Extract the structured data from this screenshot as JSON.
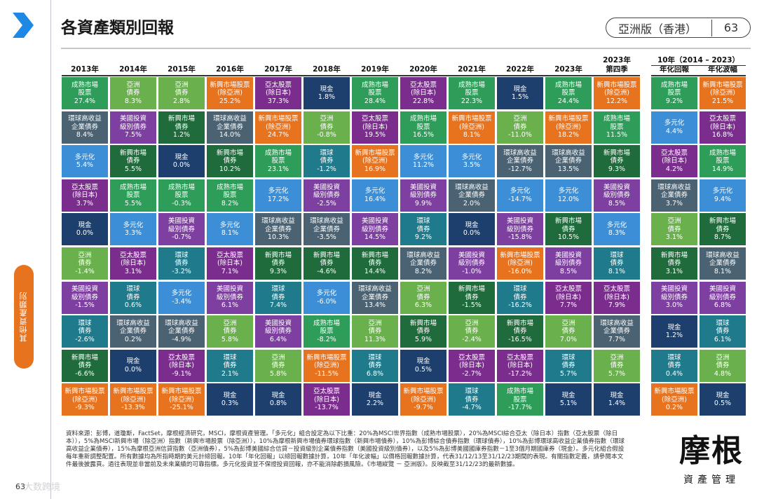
{
  "page": {
    "title": "各資產類別回報",
    "edition": "亞洲版（香港）",
    "page_number": "63",
    "side_tab": "其他資產類別",
    "footer_page_number": "63",
    "watermark": "大数跨境",
    "logo_main": "摩根",
    "logo_sub": "資產管理",
    "footnote": "資料來源：彭博，道瓊斯，FactSet，摩根經濟研究，MSCI，摩根資產管理。「多元化」組合設定為以下比重：20%為MSCI世界指數（成熟市場股票），20%為MSCI綜合亞太（除日本）指數（亞太股票（除日本）），5%為MSCI新興市場（除亞洲）指數（新興市場股票（除亞洲）），10%為摩根新興市場債券環球指數（新興市場債券），10%為彭博綜合債券指數（環球債券），10%為彭博環球高收益企業債券指數（環球高收益企業債券），15%為摩根亞洲信貸指數（亞洲債券），5%為彭博美國綜合信貸－投資級別企業債券指數（美國投資級別債券），以及5%為彭博美國國庫券指數－1至3個月期國庫券（現金）。多元化組合假設每年重新調整配置。所有數據均為所指時期的美元計總回報。10年「年化回報」以總回報數據計算，10年「年化波幅」以價格回報數據計算，代表31/12/13至31/12/23期間的表現。有關指數定義，請參閱本文件最後披露頁。過往表現並非當前及未來業績的可靠指標。多元化投資並不保證投資回報，亦不能消除虧損風險。《市場縱覽 － 亞洲版》。反映截至31/12/23的最新數據。"
  },
  "colors": {
    "成熟市場股票": "#2f9d5a",
    "亞洲債券": "#6ab04c",
    "新興市場股票(除亞洲)": "#e8731e",
    "亞太股票(除日本)": "#7b2d8e",
    "現金": "#1c3f6e",
    "環球高收益企業債券": "#4a6272",
    "美國投資級別債券": "#7d3fa0",
    "新興市場債券": "#1f6b3b",
    "多元化": "#3c8fd6",
    "環球債券": "#1f7a8c"
  },
  "chart_data": {
    "type": "table",
    "title": "各資產類別回報",
    "headers": [
      {
        "line1": "",
        "line2": "2013年"
      },
      {
        "line1": "",
        "line2": "2014年"
      },
      {
        "line1": "",
        "line2": "2015年"
      },
      {
        "line1": "",
        "line2": "2016年"
      },
      {
        "line1": "",
        "line2": "2017年"
      },
      {
        "line1": "",
        "line2": "2018年"
      },
      {
        "line1": "",
        "line2": "2019年"
      },
      {
        "line1": "",
        "line2": "2020年"
      },
      {
        "line1": "",
        "line2": "2021年"
      },
      {
        "line1": "",
        "line2": "2022年"
      },
      {
        "line1": "",
        "line2": "2023年"
      },
      {
        "line1": "2023年",
        "line2": "第四季"
      },
      {
        "line1": "",
        "line2": "年化回報"
      },
      {
        "line1": "",
        "line2": "年化波幅"
      }
    ],
    "ten_year_header": "10年（2014 – 2023）",
    "columns": [
      [
        {
          "name": "成熟市場\n股票",
          "value": "27.4%",
          "key": "成熟市場股票"
        },
        {
          "name": "環球高收益\n企業債券",
          "value": "8.4%",
          "key": "環球高收益企業債券"
        },
        {
          "name": "多元化",
          "value": "5.4%",
          "key": "多元化"
        },
        {
          "name": "亞太股票\n(除日本)",
          "value": "3.7%",
          "key": "亞太股票(除日本)"
        },
        {
          "name": "現金",
          "value": "0.0%",
          "key": "現金"
        },
        {
          "name": "亞洲\n債券",
          "value": "-1.4%",
          "key": "亞洲債券"
        },
        {
          "name": "美國投資\n級別債券",
          "value": "-1.5%",
          "key": "美國投資級別債券"
        },
        {
          "name": "環球\n債券",
          "value": "-2.6%",
          "key": "環球債券"
        },
        {
          "name": "新興市場\n債券",
          "value": "-6.6%",
          "key": "新興市場債券"
        },
        {
          "name": "新興市場股票\n(除亞洲)",
          "value": "-9.3%",
          "key": "新興市場股票(除亞洲)"
        }
      ],
      [
        {
          "name": "亞洲\n債券",
          "value": "8.3%",
          "key": "亞洲債券"
        },
        {
          "name": "美國投資\n級別債券",
          "value": "7.5%",
          "key": "美國投資級別債券"
        },
        {
          "name": "新興市場\n債券",
          "value": "5.5%",
          "key": "新興市場債券"
        },
        {
          "name": "成熟市場\n股票",
          "value": "5.5%",
          "key": "成熟市場股票"
        },
        {
          "name": "多元化",
          "value": "3.3%",
          "key": "多元化"
        },
        {
          "name": "亞太股票\n(除日本)",
          "value": "3.1%",
          "key": "亞太股票(除日本)"
        },
        {
          "name": "環球\n債券",
          "value": "0.6%",
          "key": "環球債券"
        },
        {
          "name": "環球高收益\n企業債券",
          "value": "0.2%",
          "key": "環球高收益企業債券"
        },
        {
          "name": "現金",
          "value": "0.0%",
          "key": "現金"
        },
        {
          "name": "新興市場股票\n(除亞洲)",
          "value": "-13.3%",
          "key": "新興市場股票(除亞洲)"
        }
      ],
      [
        {
          "name": "亞洲\n債券",
          "value": "2.8%",
          "key": "亞洲債券"
        },
        {
          "name": "新興市場\n債券",
          "value": "1.2%",
          "key": "新興市場債券"
        },
        {
          "name": "現金",
          "value": "0.0%",
          "key": "現金"
        },
        {
          "name": "成熟市場\n股票",
          "value": "-0.3%",
          "key": "成熟市場股票"
        },
        {
          "name": "美國投資\n級別債券",
          "value": "-0.7%",
          "key": "美國投資級別債券"
        },
        {
          "name": "環球\n債券",
          "value": "-3.2%",
          "key": "環球債券"
        },
        {
          "name": "多元化",
          "value": "-3.4%",
          "key": "多元化"
        },
        {
          "name": "環球高收益\n企業債券",
          "value": "-4.9%",
          "key": "環球高收益企業債券"
        },
        {
          "name": "亞太股票\n(除日本)",
          "value": "-9.1%",
          "key": "亞太股票(除日本)"
        },
        {
          "name": "新興市場股票\n(除亞洲)",
          "value": "-25.1%",
          "key": "新興市場股票(除亞洲)"
        }
      ],
      [
        {
          "name": "新興市場股票\n(除亞洲)",
          "value": "25.2%",
          "key": "新興市場股票(除亞洲)"
        },
        {
          "name": "環球高收益\n企業債券",
          "value": "14.0%",
          "key": "環球高收益企業債券"
        },
        {
          "name": "新興市場\n債券",
          "value": "10.2%",
          "key": "新興市場債券"
        },
        {
          "name": "成熟市場\n股票",
          "value": "8.2%",
          "key": "成熟市場股票"
        },
        {
          "name": "多元化",
          "value": "8.1%",
          "key": "多元化"
        },
        {
          "name": "亞太股票\n(除日本)",
          "value": "7.1%",
          "key": "亞太股票(除日本)"
        },
        {
          "name": "美國投資\n級別債券",
          "value": "6.1%",
          "key": "美國投資級別債券"
        },
        {
          "name": "亞洲\n債券",
          "value": "5.8%",
          "key": "亞洲債券"
        },
        {
          "name": "環球\n債券",
          "value": "2.1%",
          "key": "環球債券"
        },
        {
          "name": "現金",
          "value": "0.3%",
          "key": "現金"
        }
      ],
      [
        {
          "name": "亞太股票\n(除日本)",
          "value": "37.3%",
          "key": "亞太股票(除日本)"
        },
        {
          "name": "新興市場股票\n(除亞洲)",
          "value": "24.7%",
          "key": "新興市場股票(除亞洲)"
        },
        {
          "name": "成熟市場\n股票",
          "value": "23.1%",
          "key": "成熟市場股票"
        },
        {
          "name": "多元化",
          "value": "17.2%",
          "key": "多元化"
        },
        {
          "name": "環球高收益\n企業債券",
          "value": "10.3%",
          "key": "環球高收益企業債券"
        },
        {
          "name": "新興市場\n債券",
          "value": "9.3%",
          "key": "新興市場債券"
        },
        {
          "name": "環球\n債券",
          "value": "7.4%",
          "key": "環球債券"
        },
        {
          "name": "美國投資\n級別債券",
          "value": "6.4%",
          "key": "美國投資級別債券"
        },
        {
          "name": "亞洲\n債券",
          "value": "5.8%",
          "key": "亞洲債券"
        },
        {
          "name": "現金",
          "value": "0.8%",
          "key": "現金"
        }
      ],
      [
        {
          "name": "現金",
          "value": "1.8%",
          "key": "現金"
        },
        {
          "name": "亞洲\n債券",
          "value": "-0.8%",
          "key": "亞洲債券"
        },
        {
          "name": "環球\n債券",
          "value": "-1.2%",
          "key": "環球債券"
        },
        {
          "name": "美國投資\n級別債券",
          "value": "-2.5%",
          "key": "美國投資級別債券"
        },
        {
          "name": "環球高收益\n企業債券",
          "value": "-3.5%",
          "key": "環球高收益企業債券"
        },
        {
          "name": "新興市場\n債券",
          "value": "-4.6%",
          "key": "新興市場債券"
        },
        {
          "name": "多元化",
          "value": "-6.0%",
          "key": "多元化"
        },
        {
          "name": "成熟市場\n股票",
          "value": "-8.2%",
          "key": "成熟市場股票"
        },
        {
          "name": "新興市場股票\n(除亞洲)",
          "value": "-11.5%",
          "key": "新興市場股票(除亞洲)"
        },
        {
          "name": "亞太股票\n(除日本)",
          "value": "-13.7%",
          "key": "亞太股票(除日本)"
        }
      ],
      [
        {
          "name": "成熟市場\n股票",
          "value": "28.4%",
          "key": "成熟市場股票"
        },
        {
          "name": "亞太股票\n(除日本)",
          "value": "19.5%",
          "key": "亞太股票(除日本)"
        },
        {
          "name": "新興市場股票\n(除亞洲)",
          "value": "16.9%",
          "key": "新興市場股票(除亞洲)"
        },
        {
          "name": "多元化",
          "value": "16.4%",
          "key": "多元化"
        },
        {
          "name": "美國投資\n級別債券",
          "value": "14.5%",
          "key": "美國投資級別債券"
        },
        {
          "name": "新興市場\n債券",
          "value": "14.4%",
          "key": "新興市場債券"
        },
        {
          "name": "環球高收益\n企業債券",
          "value": "13.4%",
          "key": "環球高收益企業債券"
        },
        {
          "name": "亞洲\n債券",
          "value": "11.3%",
          "key": "亞洲債券"
        },
        {
          "name": "環球\n債券",
          "value": "6.8%",
          "key": "環球債券"
        },
        {
          "name": "現金",
          "value": "2.2%",
          "key": "現金"
        }
      ],
      [
        {
          "name": "亞太股票\n(除日本)",
          "value": "22.8%",
          "key": "亞太股票(除日本)"
        },
        {
          "name": "成熟市場\n股票",
          "value": "16.5%",
          "key": "成熟市場股票"
        },
        {
          "name": "多元化",
          "value": "11.2%",
          "key": "多元化"
        },
        {
          "name": "美國投資\n級別債券",
          "value": "9.9%",
          "key": "美國投資級別債券"
        },
        {
          "name": "環球\n債券",
          "value": "9.2%",
          "key": "環球債券"
        },
        {
          "name": "環球高收益\n企業債券",
          "value": "8.2%",
          "key": "環球高收益企業債券"
        },
        {
          "name": "亞洲\n債券",
          "value": "6.3%",
          "key": "亞洲債券"
        },
        {
          "name": "新興市場\n債券",
          "value": "5.9%",
          "key": "新興市場債券"
        },
        {
          "name": "現金",
          "value": "0.5%",
          "key": "現金"
        },
        {
          "name": "新興市場股票\n(除亞洲)",
          "value": "-9.7%",
          "key": "新興市場股票(除亞洲)"
        }
      ],
      [
        {
          "name": "成熟市場\n股票",
          "value": "22.3%",
          "key": "成熟市場股票"
        },
        {
          "name": "新興市場股票\n(除亞洲)",
          "value": "8.1%",
          "key": "新興市場股票(除亞洲)"
        },
        {
          "name": "多元化",
          "value": "3.5%",
          "key": "多元化"
        },
        {
          "name": "環球高收益\n企業債券",
          "value": "2.0%",
          "key": "環球高收益企業債券"
        },
        {
          "name": "現金",
          "value": "0.0%",
          "key": "現金"
        },
        {
          "name": "美國投資\n級別債券",
          "value": "-1.0%",
          "key": "美國投資級別債券"
        },
        {
          "name": "新興市場\n債券",
          "value": "-1.5%",
          "key": "新興市場債券"
        },
        {
          "name": "亞洲\n債券",
          "value": "-2.4%",
          "key": "亞洲債券"
        },
        {
          "name": "亞太股票\n(除日本)",
          "value": "-2.7%",
          "key": "亞太股票(除日本)"
        },
        {
          "name": "環球\n債券",
          "value": "-4.7%",
          "key": "環球債券"
        }
      ],
      [
        {
          "name": "現金",
          "value": "1.5%",
          "key": "現金"
        },
        {
          "name": "亞洲\n債券",
          "value": "-11.0%",
          "key": "亞洲債券"
        },
        {
          "name": "環球高收益\n企業債券",
          "value": "-12.7%",
          "key": "環球高收益企業債券"
        },
        {
          "name": "多元化",
          "value": "-14.7%",
          "key": "多元化"
        },
        {
          "name": "美國投資\n級別債券",
          "value": "-15.8%",
          "key": "美國投資級別債券"
        },
        {
          "name": "新興市場股票\n(除亞洲)",
          "value": "-16.0%",
          "key": "新興市場股票(除亞洲)"
        },
        {
          "name": "環球\n債券",
          "value": "-16.2%",
          "key": "環球債券"
        },
        {
          "name": "新興市場\n債券",
          "value": "-16.5%",
          "key": "新興市場債券"
        },
        {
          "name": "亞太股票\n(除日本)",
          "value": "-17.2%",
          "key": "亞太股票(除日本)"
        },
        {
          "name": "成熟市場\n股票",
          "value": "-17.7%",
          "key": "成熟市場股票"
        }
      ],
      [
        {
          "name": "成熟市場\n股票",
          "value": "24.4%",
          "key": "成熟市場股票"
        },
        {
          "name": "新興市場股票\n(除亞洲)",
          "value": "18.2%",
          "key": "新興市場股票(除亞洲)"
        },
        {
          "name": "環球高收益\n企業債券",
          "value": "13.5%",
          "key": "環球高收益企業債券"
        },
        {
          "name": "多元化",
          "value": "12.0%",
          "key": "多元化"
        },
        {
          "name": "新興市場\n債券",
          "value": "10.5%",
          "key": "新興市場債券"
        },
        {
          "name": "美國投資\n級別債券",
          "value": "8.5%",
          "key": "美國投資級別債券"
        },
        {
          "name": "亞太股票\n(除日本)",
          "value": "7.7%",
          "key": "亞太股票(除日本)"
        },
        {
          "name": "亞洲\n債券",
          "value": "7.0%",
          "key": "亞洲債券"
        },
        {
          "name": "環球\n債券",
          "value": "5.7%",
          "key": "環球債券"
        },
        {
          "name": "現金",
          "value": "5.1%",
          "key": "現金"
        }
      ],
      [
        {
          "name": "新興市場股票\n(除亞洲)",
          "value": "12.2%",
          "key": "新興市場股票(除亞洲)"
        },
        {
          "name": "成熟市場\n股票",
          "value": "11.5%",
          "key": "成熟市場股票"
        },
        {
          "name": "新興市場\n債券",
          "value": "9.3%",
          "key": "新興市場債券"
        },
        {
          "name": "美國投資\n級別債券",
          "value": "8.5%",
          "key": "美國投資級別債券"
        },
        {
          "name": "多元化",
          "value": "8.3%",
          "key": "多元化"
        },
        {
          "name": "環球\n債券",
          "value": "8.1%",
          "key": "環球債券"
        },
        {
          "name": "亞太股票\n(除日本)",
          "value": "7.9%",
          "key": "亞太股票(除日本)"
        },
        {
          "name": "環球高收益\n企業債券",
          "value": "7.7%",
          "key": "環球高收益企業債券"
        },
        {
          "name": "亞洲\n債券",
          "value": "5.7%",
          "key": "亞洲債券"
        },
        {
          "name": "現金",
          "value": "1.4%",
          "key": "現金"
        }
      ],
      [
        {
          "name": "成熟市場\n股票",
          "value": "9.2%",
          "key": "成熟市場股票"
        },
        {
          "name": "多元化",
          "value": "4.4%",
          "key": "多元化"
        },
        {
          "name": "亞太股票\n(除日本)",
          "value": "4.2%",
          "key": "亞太股票(除日本)"
        },
        {
          "name": "環球高收益\n企業債券",
          "value": "3.7%",
          "key": "環球高收益企業債券"
        },
        {
          "name": "亞洲\n債券",
          "value": "3.1%",
          "key": "亞洲債券"
        },
        {
          "name": "新興市場\n債券",
          "value": "3.1%",
          "key": "新興市場債券"
        },
        {
          "name": "美國投資\n級別債券",
          "value": "3.0%",
          "key": "美國投資級別債券"
        },
        {
          "name": "現金",
          "value": "1.2%",
          "key": "現金"
        },
        {
          "name": "環球\n債券",
          "value": "0.4%",
          "key": "環球債券"
        },
        {
          "name": "新興市場股票\n(除亞洲)",
          "value": "0.2%",
          "key": "新興市場股票(除亞洲)"
        }
      ],
      [
        {
          "name": "新興市場股票\n(除亞洲)",
          "value": "21.5%",
          "key": "新興市場股票(除亞洲)"
        },
        {
          "name": "亞太股票\n(除日本)",
          "value": "16.8%",
          "key": "亞太股票(除日本)"
        },
        {
          "name": "成熟市場\n股票",
          "value": "14.9%",
          "key": "成熟市場股票"
        },
        {
          "name": "多元化",
          "value": "9.4%",
          "key": "多元化"
        },
        {
          "name": "新興市場\n債券",
          "value": "8.7%",
          "key": "新興市場債券"
        },
        {
          "name": "環球高收益\n企業債券",
          "value": "8.1%",
          "key": "環球高收益企業債券"
        },
        {
          "name": "美國投資\n級別債券",
          "value": "6.8%",
          "key": "美國投資級別債券"
        },
        {
          "name": "環球\n債券",
          "value": "6.1%",
          "key": "環球債券"
        },
        {
          "name": "亞洲\n債券",
          "value": "4.8%",
          "key": "亞洲債券"
        },
        {
          "name": "現金",
          "value": "0.5%",
          "key": "現金"
        }
      ]
    ]
  }
}
